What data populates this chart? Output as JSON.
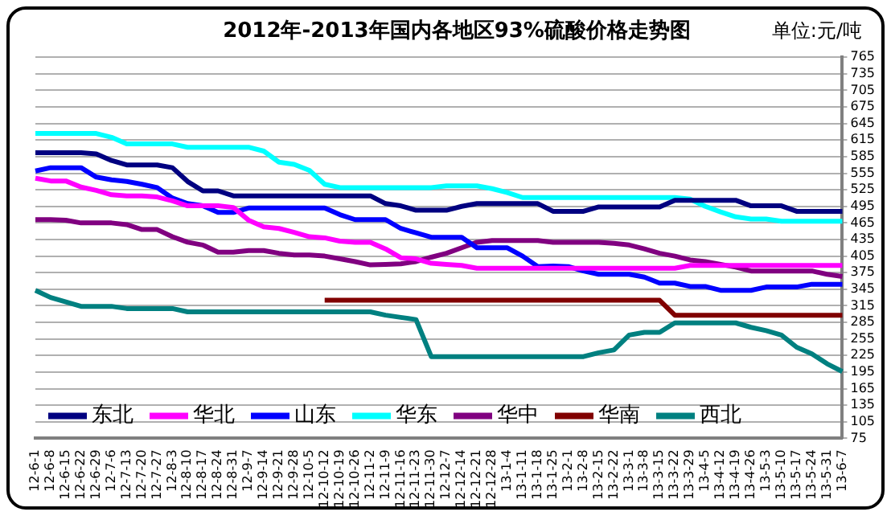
{
  "chart_data": {
    "type": "line",
    "title": "2012年-2013年国内各地区93%硫酸价格走势图",
    "annotations": [
      "单位:元/吨"
    ],
    "categories": [
      "12-6-1",
      "12-6-8",
      "12-6-15",
      "12-6-22",
      "12-6-29",
      "12-7-6",
      "12-7-13",
      "12-7-20",
      "12-7-27",
      "12-8-3",
      "12-8-10",
      "12-8-17",
      "12-8-24",
      "12-8-31",
      "12-9-7",
      "12-9-14",
      "12-9-21",
      "12-9-28",
      "12-10-5",
      "12-10-12",
      "12-10-19",
      "12-10-26",
      "12-11-2",
      "12-11-9",
      "12-11-16",
      "12-11-23",
      "12-11-30",
      "12-12-7",
      "12-12-14",
      "12-12-21",
      "12-12-28",
      "13-1-4",
      "13-1-11",
      "13-1-18",
      "13-1-25",
      "13-2-1",
      "13-2-8",
      "13-2-15",
      "13-2-22",
      "13-3-1",
      "13-3-8",
      "13-3-15",
      "13-3-22",
      "13-3-29",
      "13-4-5",
      "13-4-12",
      "13-4-19",
      "13-4-26",
      "13-5-3",
      "13-5-10",
      "13-5-17",
      "13-5-24",
      "13-5-31",
      "13-6-7"
    ],
    "series": [
      {
        "name": "东北",
        "color": "#000080",
        "values": [
          592,
          592,
          592,
          592,
          590,
          578,
          570,
          570,
          570,
          565,
          540,
          523,
          523,
          514,
          514,
          514,
          514,
          514,
          514,
          514,
          514,
          514,
          514,
          500,
          496,
          488,
          488,
          488,
          495,
          500,
          500,
          500,
          500,
          500,
          486,
          486,
          486,
          494,
          494,
          494,
          494,
          494,
          506,
          506,
          506,
          506,
          506,
          496,
          496,
          496,
          486,
          486,
          486,
          486
        ]
      },
      {
        "name": "华北",
        "color": "#ff00ff",
        "values": [
          546,
          541,
          541,
          530,
          524,
          516,
          514,
          514,
          512,
          505,
          496,
          496,
          496,
          493,
          470,
          458,
          455,
          448,
          440,
          438,
          432,
          430,
          430,
          418,
          402,
          400,
          392,
          390,
          388,
          383,
          383,
          383,
          383,
          383,
          383,
          383,
          383,
          383,
          383,
          383,
          383,
          383,
          383,
          388,
          388,
          388,
          388,
          388,
          388,
          388,
          388,
          388,
          388,
          388
        ]
      },
      {
        "name": "山东",
        "color": "#0000ff",
        "values": [
          559,
          565,
          565,
          565,
          548,
          543,
          540,
          535,
          529,
          510,
          500,
          496,
          484,
          484,
          492,
          492,
          492,
          492,
          492,
          492,
          480,
          471,
          471,
          471,
          455,
          447,
          439,
          439,
          439,
          420,
          420,
          420,
          405,
          386,
          387,
          386,
          378,
          372,
          372,
          372,
          367,
          356,
          356,
          350,
          350,
          343,
          343,
          343,
          349,
          349,
          349,
          354,
          354,
          354
        ]
      },
      {
        "name": "华东",
        "color": "#00ffff",
        "values": [
          627,
          627,
          627,
          627,
          627,
          620,
          608,
          608,
          608,
          608,
          602,
          602,
          602,
          602,
          602,
          595,
          575,
          571,
          560,
          535,
          529,
          529,
          529,
          529,
          529,
          529,
          529,
          532,
          532,
          532,
          527,
          520,
          511,
          511,
          511,
          511,
          511,
          511,
          511,
          511,
          511,
          511,
          511,
          508,
          495,
          485,
          476,
          472,
          472,
          468,
          468,
          468,
          468,
          468
        ]
      },
      {
        "name": "华中",
        "color": "#800080",
        "values": [
          471,
          471,
          470,
          465,
          465,
          465,
          462,
          453,
          453,
          440,
          430,
          425,
          412,
          412,
          415,
          415,
          410,
          407,
          407,
          405,
          400,
          395,
          389,
          390,
          391,
          395,
          403,
          410,
          420,
          430,
          433,
          433,
          433,
          433,
          430,
          430,
          430,
          430,
          428,
          425,
          418,
          410,
          405,
          398,
          395,
          390,
          385,
          378,
          378,
          378,
          378,
          378,
          372,
          368
        ]
      },
      {
        "name": "华南",
        "color": "#800000",
        "values": [
          null,
          null,
          null,
          null,
          null,
          null,
          null,
          null,
          null,
          null,
          null,
          null,
          null,
          null,
          null,
          null,
          null,
          null,
          null,
          325,
          325,
          325,
          325,
          325,
          325,
          325,
          325,
          325,
          325,
          325,
          325,
          325,
          325,
          325,
          325,
          325,
          325,
          325,
          325,
          325,
          325,
          325,
          298,
          298,
          298,
          298,
          298,
          298,
          298,
          298,
          298,
          298,
          298,
          298
        ]
      },
      {
        "name": "西北",
        "color": "#008080",
        "values": [
          343,
          330,
          322,
          314,
          314,
          314,
          310,
          310,
          310,
          310,
          304,
          304,
          304,
          304,
          304,
          304,
          304,
          304,
          304,
          304,
          304,
          304,
          304,
          298,
          294,
          290,
          223,
          223,
          223,
          223,
          223,
          223,
          223,
          223,
          223,
          223,
          223,
          230,
          235,
          262,
          267,
          267,
          284,
          284,
          284,
          284,
          284,
          276,
          270,
          262,
          240,
          228,
          210,
          196
        ]
      }
    ],
    "ylim": [
      75,
      765
    ],
    "yticks": [
      75,
      105,
      135,
      165,
      195,
      225,
      255,
      285,
      315,
      345,
      375,
      405,
      435,
      465,
      495,
      525,
      555,
      585,
      615,
      645,
      675,
      705,
      735,
      765
    ],
    "grid": "y",
    "legend": "bottom left",
    "marker": "none",
    "line_style": "solid"
  }
}
